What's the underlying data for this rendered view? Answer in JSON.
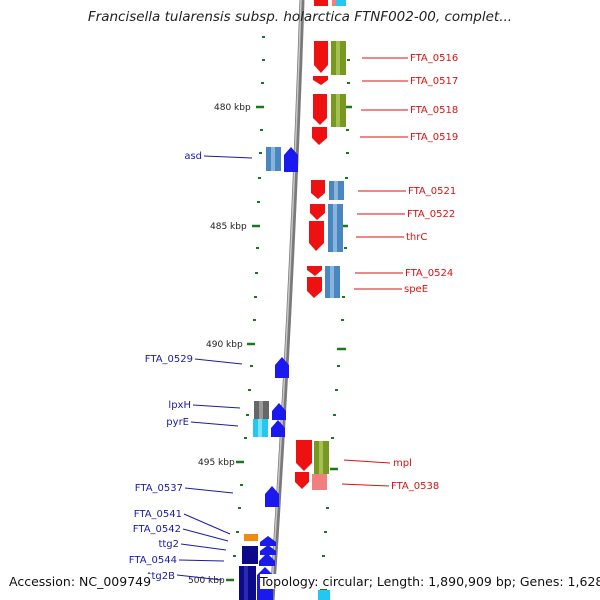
{
  "title": "Francisella tularensis subsp. holarctica FTNF002-00, complet...",
  "footer": {
    "accession": "Accession: NC_009749",
    "summary": "Topology: circular; Length: 1,890,909 bp; Genes: 1,628"
  },
  "scale_ticks": [
    "480 kbp",
    "485 kbp",
    "490 kbp",
    "495 kbp",
    "500 kbp"
  ],
  "colors": {
    "red_gene": "#ee1111",
    "olive_feature": "#779922",
    "steel_feature": "#4a86c0",
    "blue_gene": "#1a1aee",
    "navy_gene": "#0a0a8a",
    "cyan_feature": "#22c8f0",
    "gray_feature": "#666666",
    "orange_feature": "#f08a10",
    "pink_feature": "#f08080",
    "backbone": "#8a8a8a",
    "tick_green": "#1a7a1a"
  },
  "right_labels": [
    "FTA_0516",
    "FTA_0517",
    "FTA_0518",
    "FTA_0519",
    "FTA_0521",
    "FTA_0522",
    "thrC",
    "FTA_0524",
    "speE",
    "mpl",
    "FTA_0538"
  ],
  "left_labels": [
    "asd",
    "FTA_0529",
    "lpxH",
    "pyrE",
    "FTA_0537",
    "FTA_0541",
    "FTA_0542",
    "ttg2",
    "FTA_0544",
    "ttg2B"
  ]
}
